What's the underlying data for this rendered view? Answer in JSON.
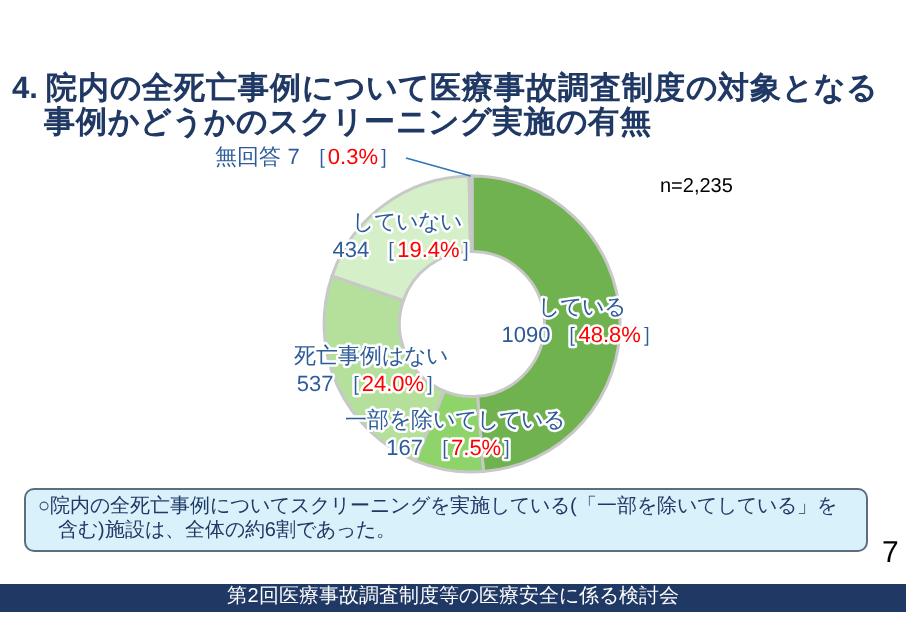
{
  "chart_data": {
    "type": "donut",
    "title": "4. 院内の全死亡事例について医療事故調査制度の対象となる事例かどうかのスクリーニング実施の有無",
    "categories": [
      "している",
      "一部を除いてしている",
      "死亡事例はない",
      "していない",
      "無回答"
    ],
    "values": [
      1090,
      167,
      537,
      434,
      7
    ],
    "colors": [
      "#6fb24f",
      "#8ed46a",
      "#b4e09c",
      "#d5efc9",
      "#e9f4e2"
    ],
    "value_labels": [
      "1090 ［48.8%］",
      "167 ［7.5%］",
      "537 ［24.0%］",
      "434 ［19.4%］",
      "7 ［0.3%］"
    ],
    "annotations": [
      "n=2,235",
      "○院内の全死亡事例についてスクリーニングを実施している(「一部を除いてしている」を含む)施設は、全体の約6割であった。",
      "7",
      "第2回医療事故調査制度等の医療安全に係る検討会"
    ]
  }
}
